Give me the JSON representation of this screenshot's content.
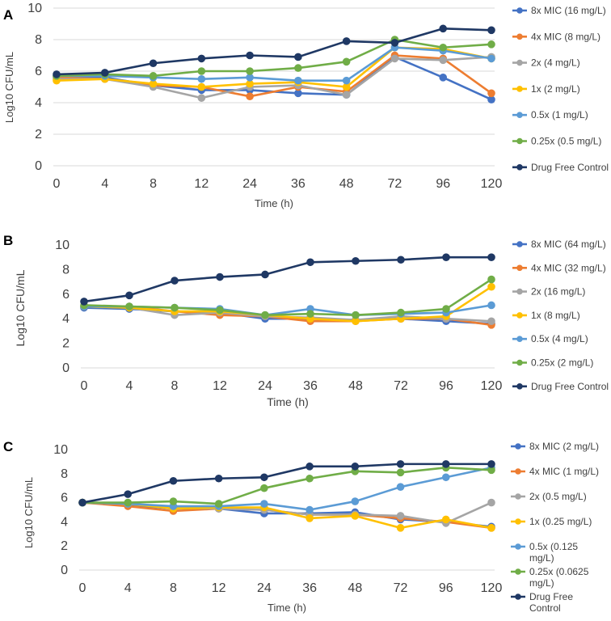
{
  "series_colors": [
    "#4472C4",
    "#ED7D31",
    "#A5A5A5",
    "#FFC000",
    "#5B9BD5",
    "#70AD47",
    "#1F3864"
  ],
  "chart_data": [
    {
      "type": "line",
      "panel_label": "A",
      "xlabel": "Time (h)",
      "ylabel": "Log10 CFU/mL",
      "ylim": [
        0,
        10
      ],
      "yticks": [
        "0",
        "2",
        "4",
        "6",
        "8",
        "10"
      ],
      "grid": true,
      "legend": "right",
      "categories": [
        "0",
        "4",
        "8",
        "12",
        "24",
        "36",
        "48",
        "72",
        "96",
        "120"
      ],
      "series": [
        {
          "name": "8x MIC (16 mg/L)",
          "legend_lines": [
            "8x MIC (16 mg/L)"
          ],
          "values": [
            5.7,
            5.6,
            5.1,
            4.8,
            4.8,
            4.6,
            4.5,
            6.9,
            5.6,
            4.2
          ]
        },
        {
          "name": "4x MIC (8 mg/L)",
          "legend_lines": [
            "4x MIC (8 mg/L)"
          ],
          "values": [
            5.6,
            5.5,
            5.1,
            5.0,
            4.4,
            5.0,
            4.7,
            7.0,
            6.8,
            4.6
          ]
        },
        {
          "name": "2x (4 mg/L)",
          "legend_lines": [
            "2x (4 mg/L)"
          ],
          "values": [
            5.5,
            5.5,
            5.0,
            4.3,
            5.0,
            5.1,
            4.5,
            6.8,
            6.7,
            6.9
          ]
        },
        {
          "name": "1x (2 mg/L)",
          "legend_lines": [
            "1x (2 mg/L)"
          ],
          "values": [
            5.4,
            5.5,
            5.2,
            5.0,
            5.2,
            5.3,
            5.0,
            7.5,
            7.4,
            6.8
          ]
        },
        {
          "name": "0.5x (1 mg/L)",
          "legend_lines": [
            "0.5x (1 mg/L)"
          ],
          "values": [
            5.7,
            5.7,
            5.6,
            5.5,
            5.6,
            5.4,
            5.4,
            7.5,
            7.3,
            6.8
          ]
        },
        {
          "name": "0.25x (0.5 mg/L)",
          "legend_lines": [
            "0.25x (0.5 mg/L)"
          ],
          "values": [
            5.7,
            5.8,
            5.7,
            6.0,
            6.0,
            6.2,
            6.6,
            8.0,
            7.5,
            7.7
          ]
        },
        {
          "name": "Drug Free Control",
          "legend_lines": [
            "Drug Free Control"
          ],
          "values": [
            5.8,
            5.9,
            6.5,
            6.8,
            7.0,
            6.9,
            7.9,
            7.8,
            8.7,
            8.6
          ]
        }
      ]
    },
    {
      "type": "line",
      "panel_label": "B",
      "xlabel": "Time (h)",
      "ylabel": "Log10 CFU/mL",
      "ylim": [
        0,
        10
      ],
      "yticks": [
        "0",
        "2",
        "4",
        "6",
        "8",
        "10"
      ],
      "grid": false,
      "legend": "right",
      "categories": [
        "0",
        "4",
        "8",
        "12",
        "24",
        "36",
        "48",
        "72",
        "96",
        "120"
      ],
      "series": [
        {
          "name": "8x MIC (64 mg/L)",
          "legend_lines": [
            "8x MIC (64 mg/L)"
          ],
          "values": [
            4.9,
            4.8,
            4.6,
            4.5,
            4.0,
            4.0,
            3.9,
            4.0,
            3.8,
            3.6
          ]
        },
        {
          "name": "4x MIC (32 mg/L)",
          "legend_lines": [
            "4x MIC (32 mg/L)"
          ],
          "values": [
            5.0,
            5.0,
            4.6,
            4.3,
            4.2,
            3.8,
            3.8,
            4.0,
            4.0,
            3.5
          ]
        },
        {
          "name": "2x (16 mg/L)",
          "legend_lines": [
            "2x (16 mg/L)"
          ],
          "values": [
            5.0,
            4.9,
            4.3,
            4.5,
            4.2,
            4.1,
            3.9,
            4.2,
            4.0,
            3.8
          ]
        },
        {
          "name": "1x (8 mg/L)",
          "legend_lines": [
            "1x (8 mg/L)"
          ],
          "values": [
            5.0,
            4.9,
            4.6,
            4.6,
            4.3,
            4.0,
            3.8,
            4.0,
            4.2,
            6.6
          ]
        },
        {
          "name": "0.5x (4 mg/L)",
          "legend_lines": [
            "0.5x (4 mg/L)"
          ],
          "values": [
            5.0,
            5.0,
            4.9,
            4.8,
            4.3,
            4.8,
            4.3,
            4.4,
            4.5,
            5.1
          ]
        },
        {
          "name": "0.25x (2 mg/L)",
          "legend_lines": [
            "0.25x (2 mg/L)"
          ],
          "values": [
            5.1,
            5.0,
            4.9,
            4.7,
            4.3,
            4.4,
            4.3,
            4.5,
            4.8,
            7.2
          ]
        },
        {
          "name": "Drug Free Control",
          "legend_lines": [
            "Drug Free Control"
          ],
          "values": [
            5.4,
            5.9,
            7.1,
            7.4,
            7.6,
            8.6,
            8.7,
            8.8,
            9.0,
            9.0
          ]
        }
      ]
    },
    {
      "type": "line",
      "panel_label": "C",
      "xlabel": "Time (h)",
      "ylabel": "Log10 CFU/mL",
      "ylim": [
        0,
        10
      ],
      "yticks": [
        "0",
        "2",
        "4",
        "6",
        "8",
        "10"
      ],
      "grid": false,
      "legend": "right",
      "categories": [
        "0",
        "4",
        "8",
        "12",
        "24",
        "36",
        "48",
        "72",
        "96",
        "120"
      ],
      "series": [
        {
          "name": "8x MIC (2 mg/L)",
          "legend_lines": [
            "8x MIC (2 mg/L)"
          ],
          "values": [
            5.6,
            5.4,
            5.1,
            5.1,
            4.7,
            4.7,
            4.8,
            4.2,
            4.0,
            3.6
          ]
        },
        {
          "name": "4x MIC (1 mg/L)",
          "legend_lines": [
            "4x MIC (1 mg/L)"
          ],
          "values": [
            5.6,
            5.3,
            4.9,
            5.1,
            5.0,
            4.6,
            4.6,
            4.3,
            4.0,
            3.5
          ]
        },
        {
          "name": "2x (0.5 mg/L)",
          "legend_lines": [
            "2x (0.5 mg/L)"
          ],
          "values": [
            5.6,
            5.5,
            5.2,
            5.1,
            5.0,
            4.6,
            4.6,
            4.5,
            3.9,
            5.6
          ]
        },
        {
          "name": "1x (0.25 mg/L)",
          "legend_lines": [
            "1x (0.25 mg/L)"
          ],
          "values": [
            5.6,
            5.5,
            5.1,
            5.2,
            5.2,
            4.3,
            4.5,
            3.5,
            4.2,
            3.5
          ]
        },
        {
          "name": "0.5x (0.125 mg/L)",
          "legend_lines": [
            "0.5x (0.125",
            "mg/L)"
          ],
          "values": [
            5.6,
            5.5,
            5.3,
            5.3,
            5.5,
            5.0,
            5.7,
            6.9,
            7.7,
            8.5
          ]
        },
        {
          "name": "0.25x (0.0625 mg/L)",
          "legend_lines": [
            "0.25x (0.0625",
            "mg/L)"
          ],
          "values": [
            5.6,
            5.6,
            5.7,
            5.5,
            6.8,
            7.6,
            8.2,
            8.1,
            8.5,
            8.3
          ]
        },
        {
          "name": "Drug Free Control",
          "legend_lines": [
            "Drug Free",
            "Control"
          ],
          "values": [
            5.6,
            6.3,
            7.4,
            7.6,
            7.7,
            8.6,
            8.6,
            8.8,
            8.8,
            8.8
          ]
        }
      ]
    }
  ]
}
